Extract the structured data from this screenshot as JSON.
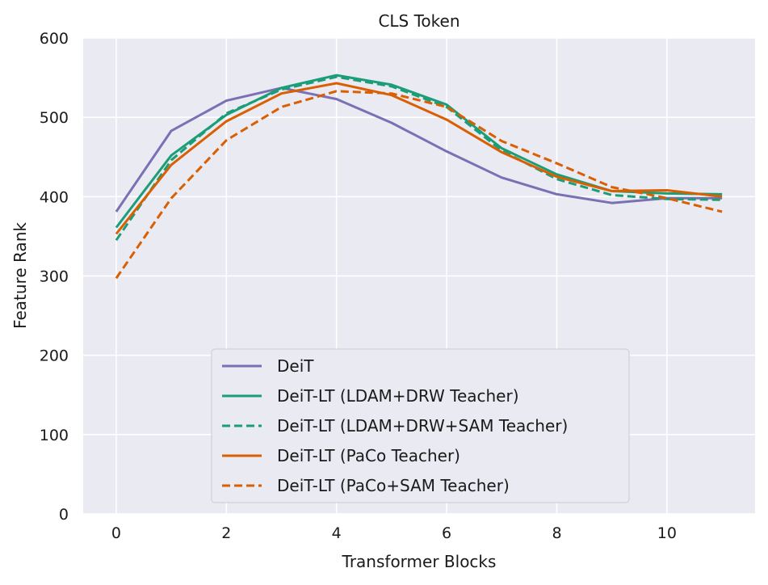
{
  "chart_data": {
    "type": "line",
    "title": "CLS Token",
    "xlabel": "Transformer Blocks",
    "ylabel": "Feature Rank",
    "xlim": [
      -0.6,
      11.6
    ],
    "ylim": [
      0,
      600
    ],
    "xticks": [
      0,
      2,
      4,
      6,
      8,
      10
    ],
    "yticks": [
      0,
      100,
      200,
      300,
      400,
      500,
      600
    ],
    "grid": true,
    "legend_position": "bottom-center",
    "x": [
      0,
      1,
      2,
      3,
      4,
      5,
      6,
      7,
      8,
      9,
      10,
      11
    ],
    "series": [
      {
        "name": "DeiT",
        "color": "#7b6fb5",
        "dash": "solid",
        "values": [
          381,
          483,
          521,
          537,
          523,
          493,
          457,
          424,
          403,
          392,
          398,
          398
        ]
      },
      {
        "name": "DeiT-LT (LDAM+DRW Teacher)",
        "color": "#1b9e77",
        "dash": "solid",
        "values": [
          361,
          452,
          503,
          537,
          553,
          541,
          516,
          461,
          428,
          407,
          404,
          403
        ]
      },
      {
        "name": "DeiT-LT (LDAM+DRW+SAM Teacher)",
        "color": "#1b9e77",
        "dash": "dashed",
        "values": [
          345,
          446,
          505,
          535,
          551,
          539,
          513,
          458,
          422,
          402,
          397,
          396
        ]
      },
      {
        "name": "DeiT-LT (PaCo Teacher)",
        "color": "#d95f02",
        "dash": "solid",
        "values": [
          353,
          440,
          495,
          530,
          543,
          528,
          497,
          456,
          425,
          407,
          408,
          400
        ]
      },
      {
        "name": "DeiT-LT (PaCo+SAM Teacher)",
        "color": "#d95f02",
        "dash": "dashed",
        "values": [
          297,
          398,
          471,
          513,
          533,
          530,
          513,
          470,
          442,
          412,
          398,
          381
        ]
      }
    ]
  }
}
